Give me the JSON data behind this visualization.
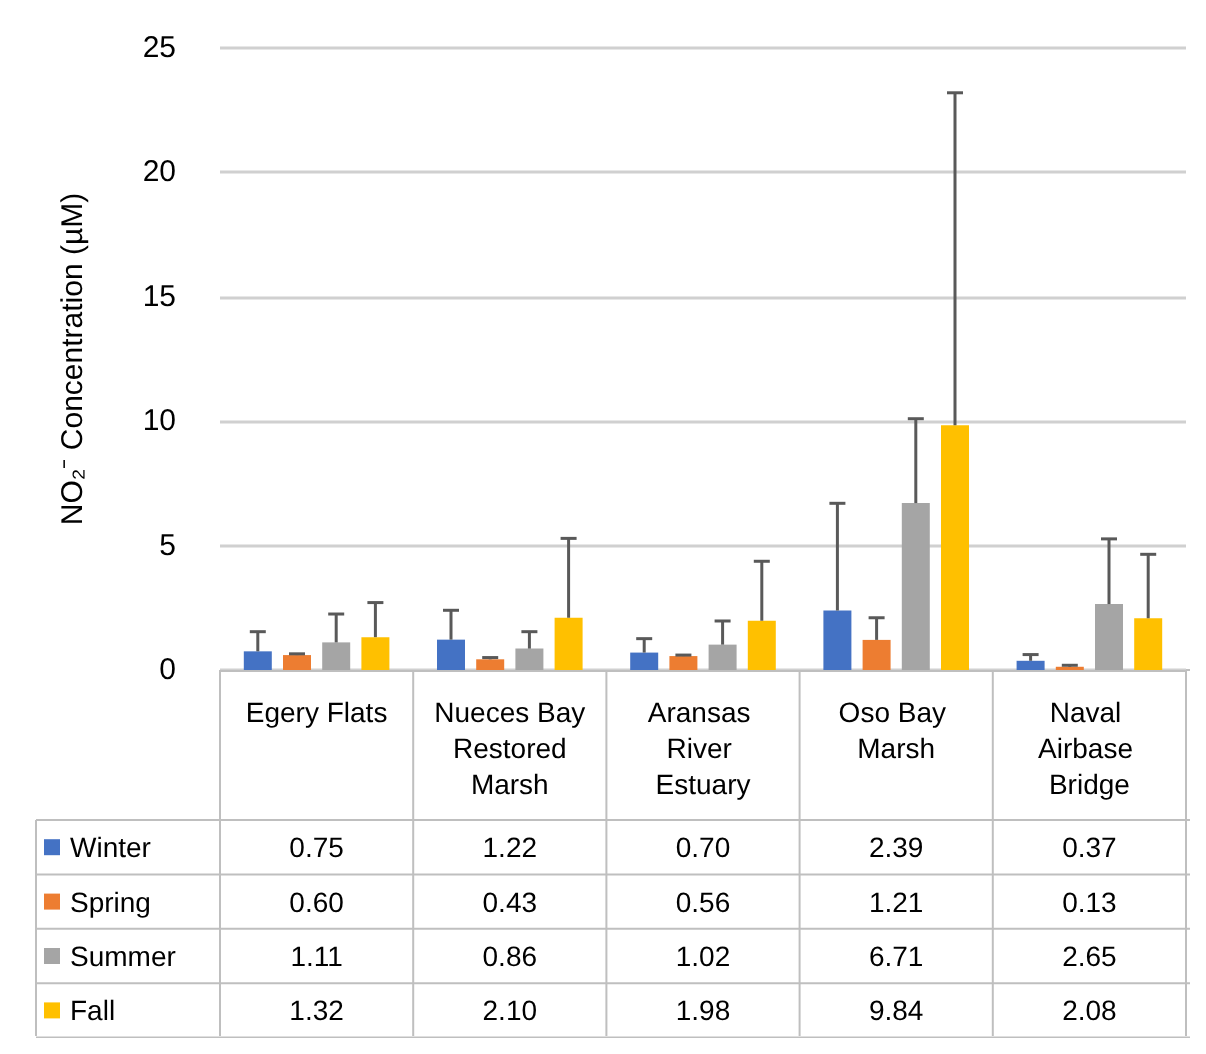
{
  "chart_data": {
    "type": "bar",
    "ylabel": "NO₂⁻ Concentration (µM)",
    "categories": [
      "Egery Flats",
      "Nueces Bay Restored Marsh",
      "Aransas River Estuary",
      "Oso Bay Marsh",
      "Naval Airbase Bridge"
    ],
    "series": [
      {
        "name": "Winter",
        "color": "#4472c4",
        "values": [
          0.75,
          1.22,
          0.7,
          2.39,
          0.37
        ],
        "value_labels": [
          "0.75",
          "1.22",
          "0.70",
          "2.39",
          "0.37"
        ],
        "errors": [
          [
            0.75,
            1.54
          ],
          [
            1.22,
            2.4
          ],
          [
            0.7,
            1.26
          ],
          [
            2.39,
            6.7
          ],
          [
            0.37,
            0.62
          ]
        ]
      },
      {
        "name": "Spring",
        "color": "#ed7d31",
        "values": [
          0.6,
          0.43,
          0.56,
          1.21,
          0.13
        ],
        "value_labels": [
          "0.60",
          "0.43",
          "0.56",
          "1.21",
          "0.13"
        ],
        "errors": [
          [
            0.6,
            0.65
          ],
          [
            0.43,
            0.5
          ],
          [
            0.56,
            0.6
          ],
          [
            1.21,
            2.1
          ],
          [
            0.13,
            0.19
          ]
        ]
      },
      {
        "name": "Summer",
        "color": "#a5a5a5",
        "values": [
          1.11,
          0.86,
          1.02,
          6.71,
          2.65
        ],
        "value_labels": [
          "1.11",
          "0.86",
          "1.02",
          "6.71",
          "2.65"
        ],
        "errors": [
          [
            1.11,
            2.25
          ],
          [
            0.86,
            1.54
          ],
          [
            1.02,
            1.97
          ],
          [
            6.71,
            10.1
          ],
          [
            2.65,
            5.27
          ]
        ]
      },
      {
        "name": "Fall",
        "color": "#ffc000",
        "values": [
          1.32,
          2.1,
          1.98,
          9.84,
          2.08
        ],
        "value_labels": [
          "1.32",
          "2.10",
          "1.98",
          "9.84",
          "2.08"
        ],
        "errors": [
          [
            1.32,
            2.71
          ],
          [
            2.1,
            5.29
          ],
          [
            1.98,
            4.37
          ],
          [
            9.84,
            23.2
          ],
          [
            2.08,
            4.65
          ]
        ]
      }
    ],
    "ylim": [
      0,
      25
    ],
    "yticks": [
      0,
      5,
      10,
      15,
      20,
      25
    ],
    "grid": true,
    "legend": "bottom left"
  }
}
